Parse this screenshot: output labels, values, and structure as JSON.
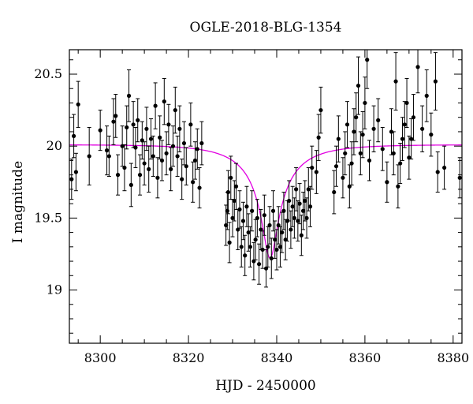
{
  "chart_data": {
    "type": "scatter",
    "title": "OGLE-2018-BLG-1354",
    "xlabel": "HJD - 2450000",
    "ylabel": "I magnitude",
    "xlim": [
      8293,
      8382
    ],
    "ylim": [
      20.67,
      18.63
    ],
    "y_inverted": true,
    "grid": false,
    "xticks": [
      8300,
      8320,
      8340,
      8360,
      8380
    ],
    "yticks": [
      19,
      19.5,
      20,
      20.5
    ],
    "x_minor_step": 5,
    "y_minor_step": 0.1,
    "colors": {
      "points": "#000000",
      "model": "#e100e1"
    },
    "model": {
      "name": "",
      "t0": 8338.5,
      "u0": 0.12,
      "tE": 13.0,
      "m_base": 20.01,
      "fs": 0.145
    },
    "points": [
      [
        8293.5,
        19.77,
        0.14
      ],
      [
        8294,
        20.07,
        0.15
      ],
      [
        8294.5,
        19.82,
        0.13
      ],
      [
        8295,
        20.29,
        0.16
      ],
      [
        8297.5,
        19.93,
        0.2
      ],
      [
        8300,
        20.11,
        0.14
      ],
      [
        8301.5,
        19.97,
        0.17
      ],
      [
        8302,
        19.93,
        0.14
      ],
      [
        8303,
        20.17,
        0.16
      ],
      [
        8303.5,
        20.21,
        0.15
      ],
      [
        8304,
        19.8,
        0.14
      ],
      [
        8305,
        20.0,
        0.14
      ],
      [
        8305.5,
        19.85,
        0.16
      ],
      [
        8306,
        20.13,
        0.15
      ],
      [
        8306.5,
        20.35,
        0.18
      ],
      [
        8307,
        19.73,
        0.15
      ],
      [
        8307.5,
        20.15,
        0.16
      ],
      [
        8308,
        19.99,
        0.14
      ],
      [
        8308.5,
        20.18,
        0.15
      ],
      [
        8309,
        19.8,
        0.14
      ],
      [
        8309.5,
        20.04,
        0.13
      ],
      [
        8310,
        19.88,
        0.15
      ],
      [
        8310.5,
        20.12,
        0.15
      ],
      [
        8311,
        19.84,
        0.16
      ],
      [
        8311.5,
        20.05,
        0.14
      ],
      [
        8312,
        19.93,
        0.14
      ],
      [
        8312.5,
        20.28,
        0.16
      ],
      [
        8313,
        19.78,
        0.14
      ],
      [
        8313.5,
        20.06,
        0.15
      ],
      [
        8314,
        19.9,
        0.14
      ],
      [
        8314.5,
        20.31,
        0.16
      ],
      [
        8315,
        19.95,
        0.15
      ],
      [
        8315.5,
        20.15,
        0.14
      ],
      [
        8316,
        19.84,
        0.15
      ],
      [
        8316.5,
        20.0,
        0.14
      ],
      [
        8317,
        20.25,
        0.16
      ],
      [
        8317.5,
        19.93,
        0.14
      ],
      [
        8318,
        20.12,
        0.16
      ],
      [
        8318.5,
        19.77,
        0.14
      ],
      [
        8319,
        20.02,
        0.15
      ],
      [
        8319.5,
        19.86,
        0.13
      ],
      [
        8320.5,
        20.15,
        0.15
      ],
      [
        8321,
        19.75,
        0.14
      ],
      [
        8321.5,
        19.9,
        0.13
      ],
      [
        8322,
        19.98,
        0.14
      ],
      [
        8322.5,
        19.71,
        0.14
      ],
      [
        8323,
        20.02,
        0.15
      ],
      [
        8328.5,
        19.45,
        0.14
      ],
      [
        8328.8,
        19.55,
        0.13
      ],
      [
        8329,
        19.68,
        0.15
      ],
      [
        8329.3,
        19.33,
        0.14
      ],
      [
        8329.6,
        19.78,
        0.15
      ],
      [
        8330,
        19.5,
        0.13
      ],
      [
        8330.4,
        19.62,
        0.14
      ],
      [
        8330.8,
        19.72,
        0.16
      ],
      [
        8331.2,
        19.42,
        0.14
      ],
      [
        8331.6,
        19.56,
        0.13
      ],
      [
        8332,
        19.3,
        0.14
      ],
      [
        8332.4,
        19.48,
        0.13
      ],
      [
        8332.8,
        19.24,
        0.14
      ],
      [
        8333.2,
        19.58,
        0.14
      ],
      [
        8333.6,
        19.4,
        0.13
      ],
      [
        8334,
        19.3,
        0.14
      ],
      [
        8334.4,
        19.55,
        0.14
      ],
      [
        8334.8,
        19.2,
        0.13
      ],
      [
        8335.2,
        19.35,
        0.14
      ],
      [
        8335.6,
        19.5,
        0.13
      ],
      [
        8336,
        19.18,
        0.14
      ],
      [
        8336.4,
        19.42,
        0.14
      ],
      [
        8336.8,
        19.28,
        0.13
      ],
      [
        8337.2,
        19.52,
        0.14
      ],
      [
        8337.6,
        19.15,
        0.13
      ],
      [
        8338,
        19.3,
        0.14
      ],
      [
        8338.4,
        19.45,
        0.13
      ],
      [
        8338.8,
        19.22,
        0.14
      ],
      [
        8339.2,
        19.55,
        0.14
      ],
      [
        8339.6,
        19.35,
        0.13
      ],
      [
        8340,
        19.28,
        0.14
      ],
      [
        8340.4,
        19.45,
        0.13
      ],
      [
        8340.8,
        19.3,
        0.14
      ],
      [
        8341.2,
        19.4,
        0.14
      ],
      [
        8341.6,
        19.55,
        0.13
      ],
      [
        8342,
        19.35,
        0.14
      ],
      [
        8342.4,
        19.48,
        0.14
      ],
      [
        8342.8,
        19.62,
        0.14
      ],
      [
        8343.2,
        19.42,
        0.13
      ],
      [
        8343.6,
        19.58,
        0.14
      ],
      [
        8344,
        19.5,
        0.14
      ],
      [
        8344.4,
        19.7,
        0.15
      ],
      [
        8344.8,
        19.48,
        0.14
      ],
      [
        8345.2,
        19.6,
        0.14
      ],
      [
        8345.6,
        19.38,
        0.14
      ],
      [
        8346,
        19.55,
        0.13
      ],
      [
        8346.4,
        19.62,
        0.14
      ],
      [
        8346.8,
        19.5,
        0.14
      ],
      [
        8347.2,
        19.7,
        0.15
      ],
      [
        8347.6,
        19.58,
        0.14
      ],
      [
        8348,
        19.85,
        0.15
      ],
      [
        8349,
        19.82,
        0.15
      ],
      [
        8349.5,
        20.06,
        0.16
      ],
      [
        8350,
        20.25,
        0.16
      ],
      [
        8353,
        19.68,
        0.15
      ],
      [
        8353.5,
        19.86,
        0.14
      ],
      [
        8354,
        20.05,
        0.16
      ],
      [
        8355,
        19.78,
        0.14
      ],
      [
        8355.5,
        19.95,
        0.15
      ],
      [
        8356,
        20.15,
        0.16
      ],
      [
        8356.5,
        19.72,
        0.15
      ],
      [
        8357,
        19.88,
        0.15
      ],
      [
        8357.5,
        20.1,
        0.16
      ],
      [
        8358,
        20.2,
        0.17
      ],
      [
        8358.5,
        20.42,
        0.2
      ],
      [
        8359,
        19.95,
        0.15
      ],
      [
        8359.5,
        20.08,
        0.16
      ],
      [
        8360,
        20.3,
        0.18
      ],
      [
        8360.5,
        20.6,
        0.2
      ],
      [
        8361,
        19.9,
        0.14
      ],
      [
        8362,
        20.12,
        0.16
      ],
      [
        8363,
        20.18,
        0.15
      ],
      [
        8364,
        19.98,
        0.15
      ],
      [
        8365,
        19.75,
        0.14
      ],
      [
        8366,
        20.1,
        0.16
      ],
      [
        8366.5,
        19.95,
        0.15
      ],
      [
        8367,
        20.45,
        0.2
      ],
      [
        8367.5,
        19.72,
        0.15
      ],
      [
        8368,
        19.88,
        0.14
      ],
      [
        8368.5,
        20.05,
        0.15
      ],
      [
        8369,
        20.15,
        0.16
      ],
      [
        8369.5,
        20.3,
        0.17
      ],
      [
        8370,
        19.92,
        0.15
      ],
      [
        8370.5,
        20.05,
        0.14
      ],
      [
        8371,
        20.2,
        0.16
      ],
      [
        8372,
        20.55,
        0.18
      ],
      [
        8373,
        20.12,
        0.16
      ],
      [
        8374,
        20.35,
        0.18
      ],
      [
        8375,
        20.08,
        0.15
      ],
      [
        8376,
        20.45,
        0.2
      ],
      [
        8376.5,
        19.82,
        0.14
      ],
      [
        8378,
        19.85,
        0.15
      ],
      [
        8381.5,
        19.78,
        0.14
      ]
    ]
  }
}
